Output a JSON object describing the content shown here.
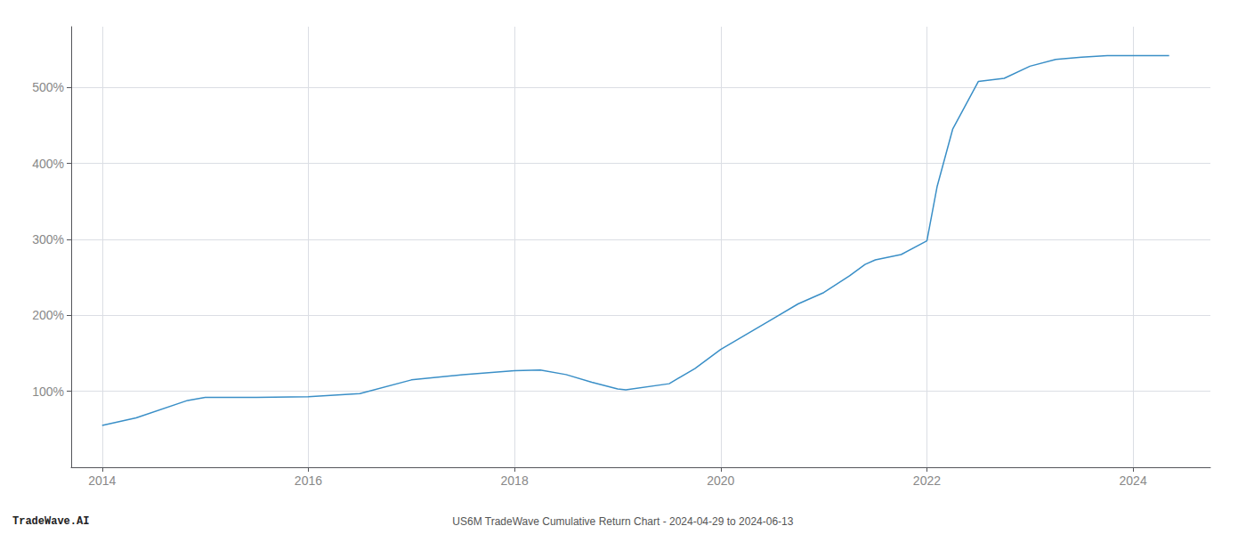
{
  "chart_data": {
    "type": "line",
    "x": [
      2014.0,
      2014.33,
      2014.83,
      2015.0,
      2015.5,
      2016.0,
      2016.5,
      2017.0,
      2017.5,
      2018.0,
      2018.25,
      2018.5,
      2018.75,
      2019.0,
      2019.08,
      2019.5,
      2019.75,
      2020.0,
      2020.25,
      2020.5,
      2020.75,
      2021.0,
      2021.25,
      2021.4,
      2021.5,
      2021.75,
      2022.0,
      2022.1,
      2022.25,
      2022.5,
      2022.75,
      2023.0,
      2023.25,
      2023.5,
      2023.75,
      2024.0,
      2024.35
    ],
    "values": [
      55,
      65,
      88,
      92,
      92,
      93,
      97,
      115,
      122,
      127,
      128,
      122,
      112,
      103,
      102,
      110,
      130,
      155,
      175,
      195,
      215,
      230,
      252,
      267,
      273,
      280,
      298,
      370,
      445,
      508,
      512,
      528,
      537,
      540,
      542,
      542,
      542
    ],
    "color": "#3a8fc7",
    "xlim": [
      2013.7,
      2024.75
    ],
    "xticks": [
      2014,
      2016,
      2018,
      2020,
      2022,
      2024
    ],
    "ylim": [
      0,
      580
    ],
    "yticks": [
      {
        "value": 100,
        "label": "100%"
      },
      {
        "value": 200,
        "label": "200%"
      },
      {
        "value": 300,
        "label": "300%"
      },
      {
        "value": 400,
        "label": "400%"
      },
      {
        "value": 500,
        "label": "500%"
      }
    ],
    "grid": true,
    "annotations": [
      "TradeWave.AI",
      "US6M TradeWave Cumulative Return Chart - 2024-04-29 to 2024-06-13"
    ]
  }
}
